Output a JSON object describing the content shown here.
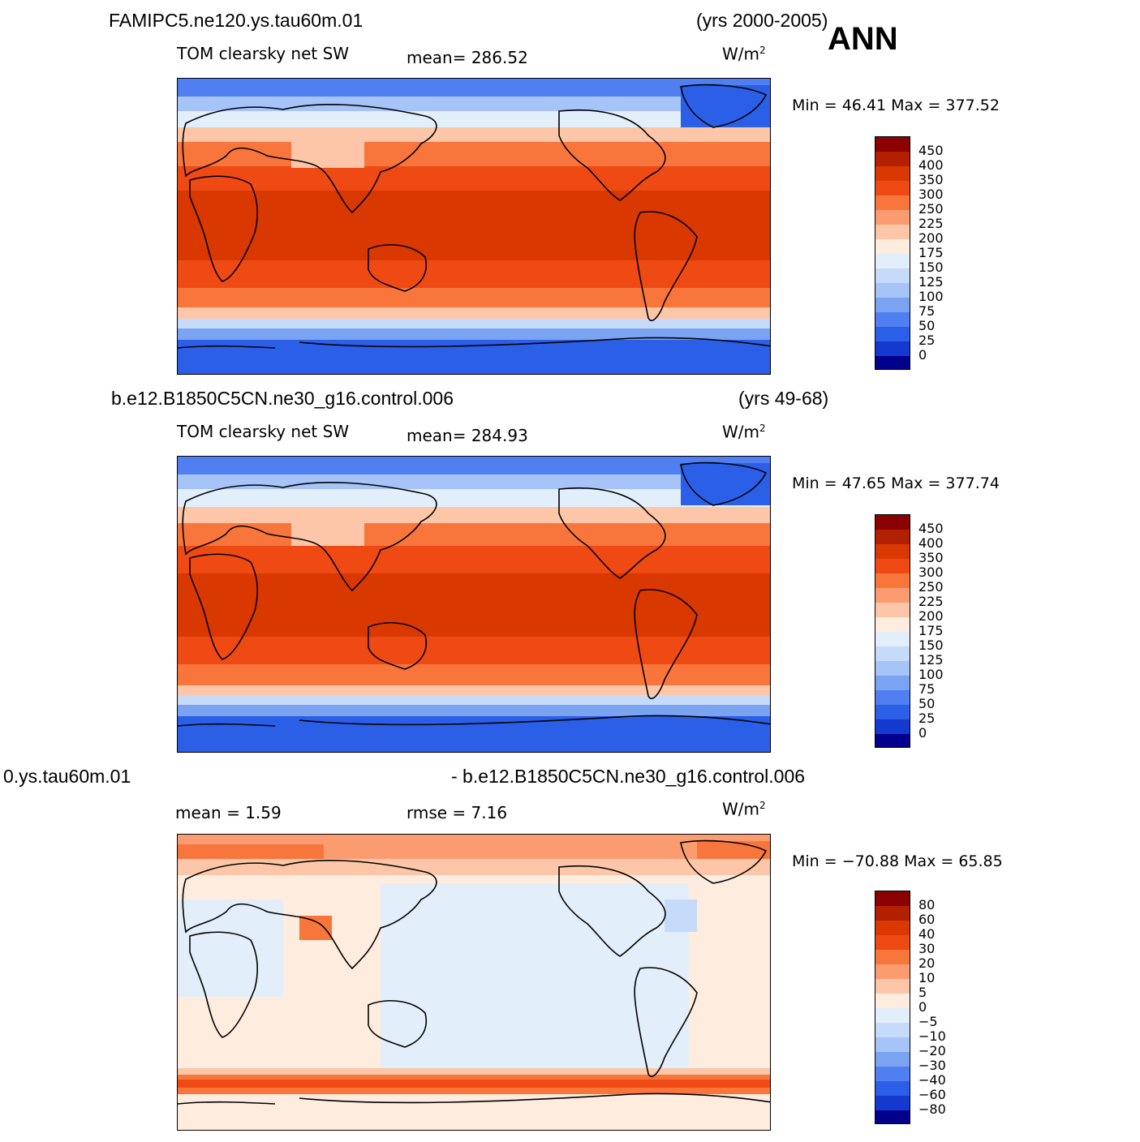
{
  "season": "ANN",
  "panels": [
    {
      "case_name": "FAMIPC5.ne120.ys.tau60m.01",
      "years": "(yrs 2000-2005)",
      "variable": "TOM clearsky net SW",
      "stat_text": "mean= 286.52",
      "units": "W/m",
      "units_sup": "2",
      "minmax": "Min =   46.41 Max = 377.52",
      "colorbar_labels": [
        "450",
        "400",
        "350",
        "300",
        "250",
        "225",
        "200",
        "175",
        "150",
        "125",
        "100",
        "75",
        "50",
        "25",
        "0"
      ]
    },
    {
      "case_name": "b.e12.B1850C5CN.ne30_g16.control.006",
      "years": "(yrs 49-68)",
      "variable": "TOM clearsky net SW",
      "stat_text": "mean= 284.93",
      "units": "W/m",
      "units_sup": "2",
      "minmax": "Min =   47.65 Max = 377.74",
      "colorbar_labels": [
        "450",
        "400",
        "350",
        "300",
        "250",
        "225",
        "200",
        "175",
        "150",
        "125",
        "100",
        "75",
        "50",
        "25",
        "0"
      ]
    },
    {
      "case_name": "0.ys.tau60m.01",
      "diff_label": "- b.e12.B1850C5CN.ne30_g16.control.006",
      "mean_text": "mean =    1.59",
      "rmse_text": "rmse =    7.16",
      "units": "W/m",
      "units_sup": "2",
      "minmax": "Min = −70.88 Max =   65.85",
      "colorbar_labels": [
        "80",
        "60",
        "40",
        "30",
        "20",
        "10",
        "5",
        "0",
        "−5",
        "−10",
        "−20",
        "−30",
        "−40",
        "−60",
        "−80"
      ]
    }
  ],
  "colors": {
    "full_field": [
      "#8b0000",
      "#b32000",
      "#d93800",
      "#ef4a14",
      "#f8763c",
      "#fb9c70",
      "#fdc6a8",
      "#feecdf",
      "#e2eefa",
      "#c6dbfa",
      "#a6c4f7",
      "#7aa3f2",
      "#4f7ff0",
      "#2b5fe8",
      "#1439cf",
      "#001a9c",
      "#00008b"
    ],
    "diff_field": [
      "#8b0000",
      "#b32000",
      "#d93800",
      "#ef4a14",
      "#f8763c",
      "#fb9c70",
      "#fdc6a8",
      "#feecdf",
      "#e2eefa",
      "#c6dbfa",
      "#a6c4f7",
      "#7aa3f2",
      "#4f7ff0",
      "#2b5fe8",
      "#1439cf",
      "#001a9c",
      "#00008b"
    ]
  }
}
